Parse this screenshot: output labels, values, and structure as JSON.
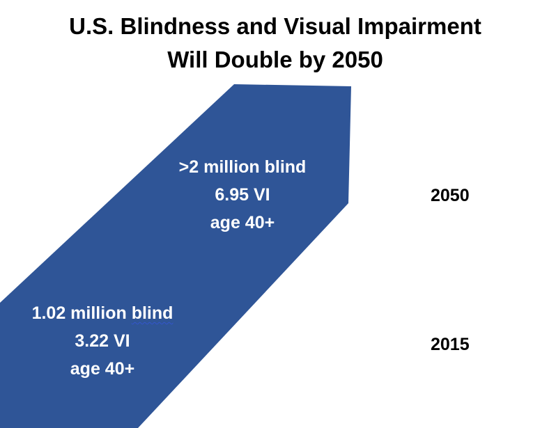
{
  "title": {
    "line1": "U.S. Blindness and Visual Impairment",
    "line2": "Will Double by 2050"
  },
  "colors": {
    "arrow_fill": "#2f5597",
    "label_text": "#ffffff",
    "spellcheck_underline": "#3355cc"
  },
  "labels_2050": {
    "blind": ">2 million blind",
    "vi": "6.95 VI",
    "age": "age 40+"
  },
  "labels_2015": {
    "blind_value": "1.02 million ",
    "blind_word": "blind",
    "vi": "3.22 VI",
    "age": "age 40+"
  },
  "years": {
    "later": "2050",
    "earlier": "2015"
  }
}
